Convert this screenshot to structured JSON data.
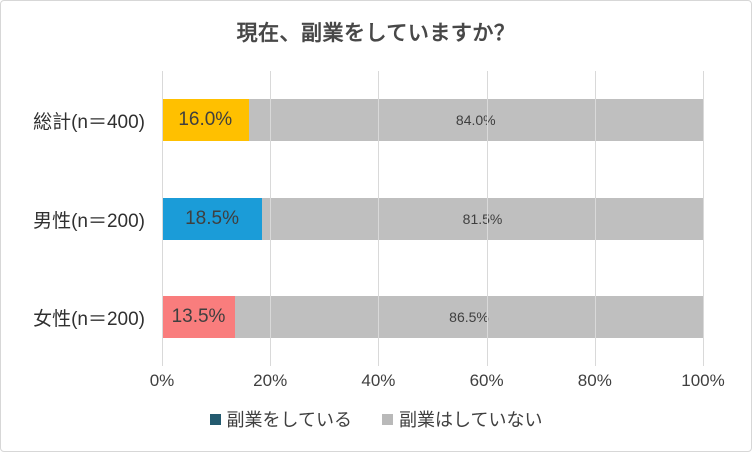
{
  "chart_data": {
    "type": "bar",
    "orientation": "horizontal",
    "stacked": true,
    "title": "現在、副業をしていますか？",
    "categories": [
      "総計(n＝400)",
      "男性(n＝200)",
      "女性(n＝200)"
    ],
    "series": [
      {
        "name": "副業をしている",
        "values": [
          16.0,
          18.5,
          13.5
        ],
        "labels": [
          "16.0%",
          "18.5%",
          "13.5%"
        ],
        "colors": [
          "#ffc000",
          "#1b9cd8",
          "#f97d7d"
        ],
        "legend_color": "#235a6f"
      },
      {
        "name": "副業はしていない",
        "values": [
          84.0,
          81.5,
          86.5
        ],
        "labels": [
          "84.0%",
          "81.5%",
          "86.5%"
        ],
        "colors": [
          "#bfbfbf",
          "#bfbfbf",
          "#bfbfbf"
        ],
        "legend_color": "#b9b9b9"
      }
    ],
    "x_axis": {
      "range": [
        0,
        100
      ],
      "tick_values": [
        0,
        20,
        40,
        60,
        80,
        100
      ],
      "tick_labels": [
        "0%",
        "20%",
        "40%",
        "60%",
        "80%",
        "100%"
      ]
    },
    "grid": true,
    "gridline_color": "#d9d9d9",
    "legend_position": "bottom"
  }
}
